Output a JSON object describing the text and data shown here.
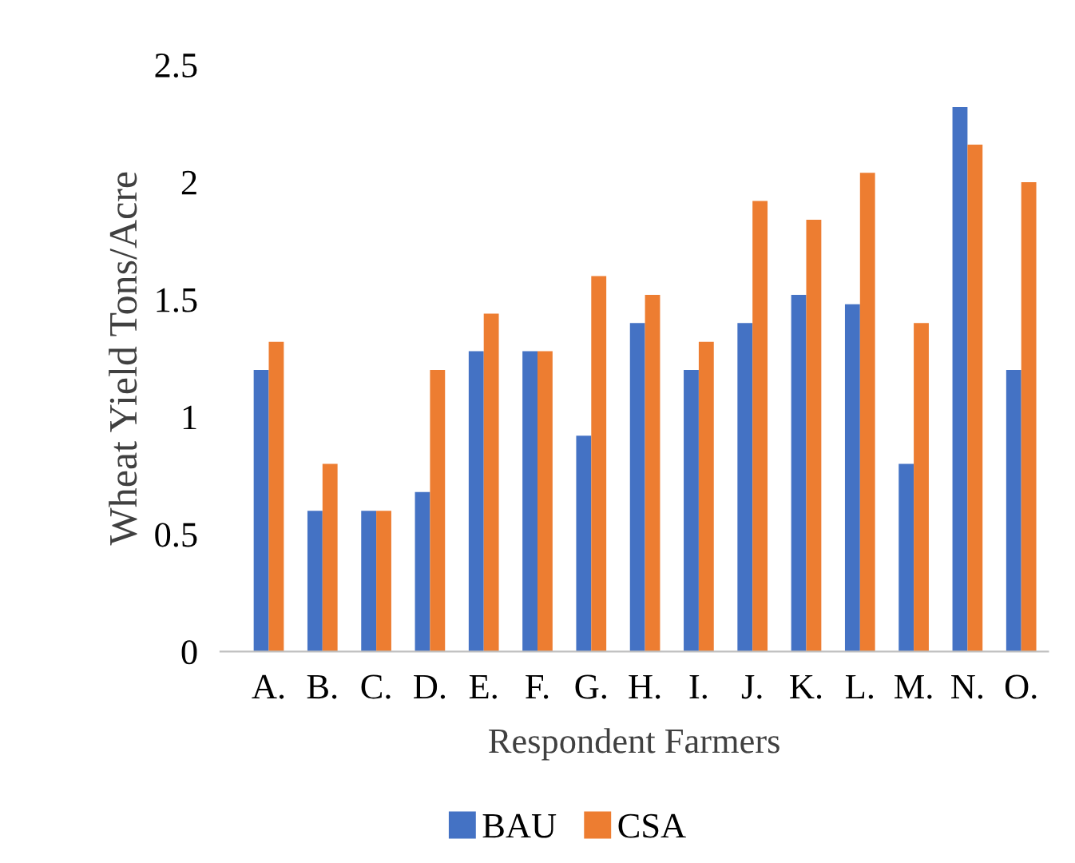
{
  "chart_data": {
    "type": "bar",
    "categories": [
      "A.",
      "B.",
      "C.",
      "D.",
      "E.",
      "F.",
      "G.",
      "H.",
      "I.",
      "J.",
      "K.",
      "L.",
      "M.",
      "N.",
      "O."
    ],
    "series": [
      {
        "name": "BAU",
        "color": "#4472c4",
        "values": [
          1.2,
          0.6,
          0.6,
          0.68,
          1.28,
          1.28,
          0.92,
          1.4,
          1.2,
          1.4,
          1.52,
          1.48,
          0.8,
          2.32,
          1.2
        ]
      },
      {
        "name": "CSA",
        "color": "#ed7d31",
        "values": [
          1.32,
          0.8,
          0.6,
          1.2,
          1.44,
          1.28,
          1.6,
          1.52,
          1.32,
          1.92,
          1.84,
          2.04,
          1.4,
          2.16,
          2.0
        ]
      }
    ],
    "xlabel": "Respondent Farmers",
    "ylabel": "Wheat Yield Tons/Acre",
    "ylim": [
      0,
      2.5
    ],
    "yticks": [
      0,
      0.5,
      1,
      1.5,
      2,
      2.5
    ],
    "grid": false,
    "legend": "bottom"
  }
}
